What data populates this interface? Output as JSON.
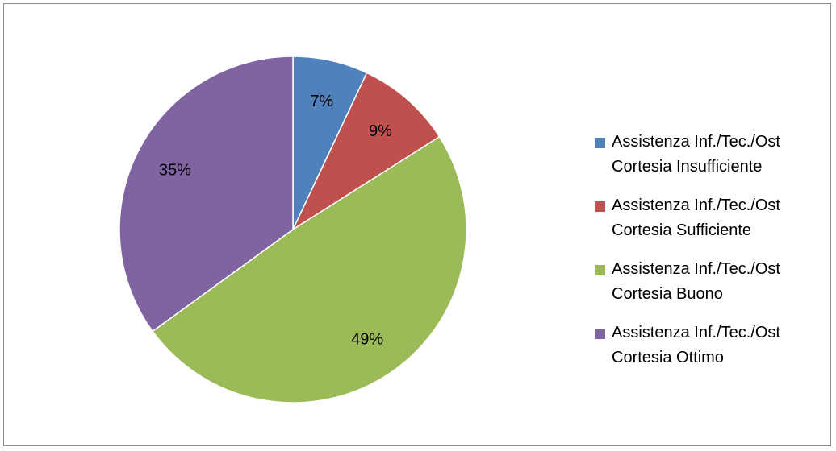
{
  "chart_data": {
    "type": "pie",
    "title": "",
    "slices": [
      {
        "label_line1": "Assistenza Inf./Tec./Ost",
        "label_line2": "Cortesia Insufficiente",
        "value": 7,
        "data_label": "7%",
        "color": "#4f81bd"
      },
      {
        "label_line1": "Assistenza Inf./Tec./Ost",
        "label_line2": "Cortesia Sufficiente",
        "value": 9,
        "data_label": "9%",
        "color": "#c0504d"
      },
      {
        "label_line1": "Assistenza Inf./Tec./Ost",
        "label_line2": "Cortesia Buono",
        "value": 49,
        "data_label": "49%",
        "color": "#9bbb59"
      },
      {
        "label_line1": "Assistenza Inf./Tec./Ost",
        "label_line2": "Cortesia Ottimo",
        "value": 35,
        "data_label": "35%",
        "color": "#8064a2"
      }
    ],
    "legend_position": "right"
  }
}
